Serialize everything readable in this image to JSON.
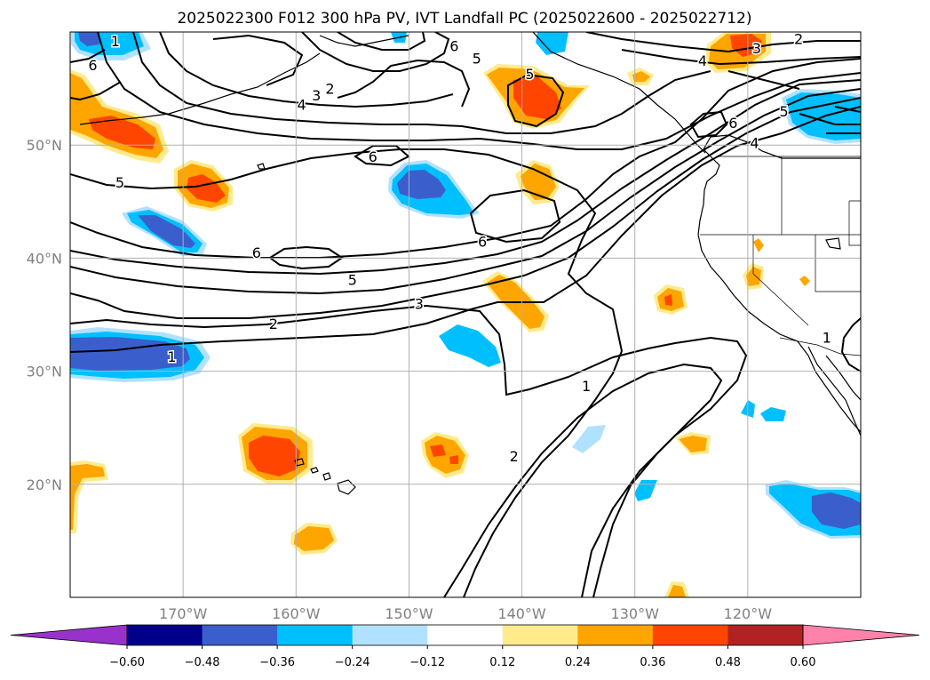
{
  "title": "2025022300 F012 300 hPa PV, IVT Landfall PC (2025022600 - 2025022712)",
  "map": {
    "lon_range": [
      -180,
      -110
    ],
    "lat_range": [
      10,
      60
    ],
    "lat_ticks": [
      {
        "value": 50,
        "label": "50°N"
      },
      {
        "value": 40,
        "label": "40°N"
      },
      {
        "value": 30,
        "label": "30°N"
      },
      {
        "value": 20,
        "label": "20°N"
      }
    ],
    "lon_ticks": [
      {
        "value": -170,
        "label": "170°W"
      },
      {
        "value": -160,
        "label": "160°W"
      },
      {
        "value": -150,
        "label": "150°W"
      },
      {
        "value": -140,
        "label": "140°W"
      },
      {
        "value": -130,
        "label": "130°W"
      },
      {
        "value": -120,
        "label": "120°W"
      }
    ],
    "grid": true
  },
  "colorbar": {
    "orientation": "horizontal",
    "extend": "both",
    "levels": [
      -0.6,
      -0.48,
      -0.36,
      -0.24,
      -0.12,
      0.12,
      0.24,
      0.36,
      0.48,
      0.6
    ],
    "tick_labels": [
      "−0.60",
      "−0.48",
      "−0.36",
      "−0.24",
      "−0.12",
      "0.12",
      "0.24",
      "0.36",
      "0.48",
      "0.60"
    ],
    "colors": [
      "#9932cc",
      "#00008b",
      "#3a5fcd",
      "#00bfff",
      "#b0e2ff",
      "#ffffff",
      "#ffeb8c",
      "#ffa500",
      "#ff4500",
      "#b22222",
      "#ff82ab"
    ]
  },
  "contour_labels": [
    {
      "text": "1",
      "lon": -176,
      "lat": 59.2
    },
    {
      "text": "6",
      "lon": -178,
      "lat": 57.1
    },
    {
      "text": "2",
      "lon": -157,
      "lat": 55.0
    },
    {
      "text": "3",
      "lon": -158.2,
      "lat": 54.4
    },
    {
      "text": "4",
      "lon": -159.5,
      "lat": 53.6
    },
    {
      "text": "6",
      "lon": -146,
      "lat": 58.8
    },
    {
      "text": "5",
      "lon": -144,
      "lat": 57.7
    },
    {
      "text": "5",
      "lon": -139.3,
      "lat": 56.3
    },
    {
      "text": "3",
      "lon": -119.2,
      "lat": 58.6
    },
    {
      "text": "2",
      "lon": -115.5,
      "lat": 59.4
    },
    {
      "text": "4",
      "lon": -124,
      "lat": 57.5
    },
    {
      "text": "5",
      "lon": -116.8,
      "lat": 53.0
    },
    {
      "text": "6",
      "lon": -121.3,
      "lat": 52.0
    },
    {
      "text": "4",
      "lon": -119.4,
      "lat": 50.2
    },
    {
      "text": "5",
      "lon": -175.6,
      "lat": 46.7
    },
    {
      "text": "6",
      "lon": -153.2,
      "lat": 49.0
    },
    {
      "text": "6",
      "lon": -143.5,
      "lat": 41.5
    },
    {
      "text": "6",
      "lon": -163.5,
      "lat": 40.5
    },
    {
      "text": "5",
      "lon": -155,
      "lat": 38.1
    },
    {
      "text": "3",
      "lon": -149.1,
      "lat": 36.0
    },
    {
      "text": "2",
      "lon": -162,
      "lat": 34.2
    },
    {
      "text": "1",
      "lon": -171,
      "lat": 31.3
    },
    {
      "text": "1",
      "lon": -134.3,
      "lat": 28.7
    },
    {
      "text": "2",
      "lon": -140.7,
      "lat": 22.5
    },
    {
      "text": "1",
      "lon": -113,
      "lat": 33.0
    }
  ]
}
